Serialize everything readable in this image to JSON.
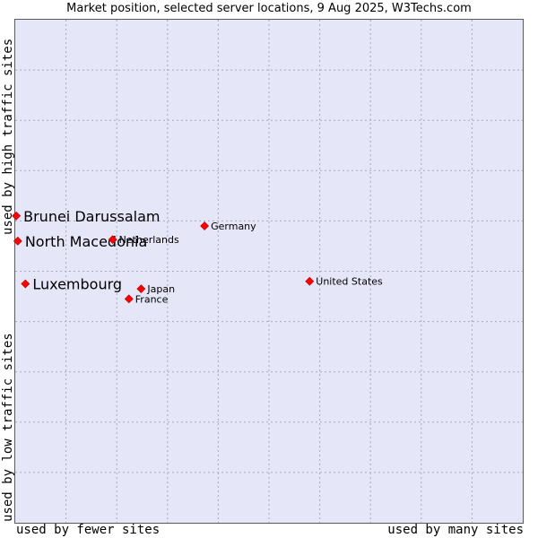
{
  "chart_data": {
    "type": "scatter",
    "title": "Market position, selected server locations, 9 Aug 2025, W3Techs.com",
    "xlabel_low": "used by fewer sites",
    "xlabel_high": "used by many sites",
    "ylabel_low": "used by low traffic sites",
    "ylabel_high": "used by high traffic sites",
    "xlim": [
      0,
      100
    ],
    "ylim": [
      0,
      100
    ],
    "grid": true,
    "marker_color": "#ff0000",
    "points": [
      {
        "label": "Brunei Darussalam",
        "x": 0.2,
        "y": 61.0,
        "highlight": true
      },
      {
        "label": "North Macedonia",
        "x": 0.5,
        "y": 56.0,
        "highlight": true
      },
      {
        "label": "Luxembourg",
        "x": 2.0,
        "y": 47.5,
        "highlight": true
      },
      {
        "label": "Netherlands",
        "x": 19.2,
        "y": 56.3,
        "highlight": false
      },
      {
        "label": "Germany",
        "x": 37.3,
        "y": 59.0,
        "highlight": false
      },
      {
        "label": "Japan",
        "x": 24.8,
        "y": 46.5,
        "highlight": false
      },
      {
        "label": "France",
        "x": 22.4,
        "y": 44.5,
        "highlight": false
      },
      {
        "label": "United States",
        "x": 58.0,
        "y": 48.0,
        "highlight": false
      }
    ]
  }
}
